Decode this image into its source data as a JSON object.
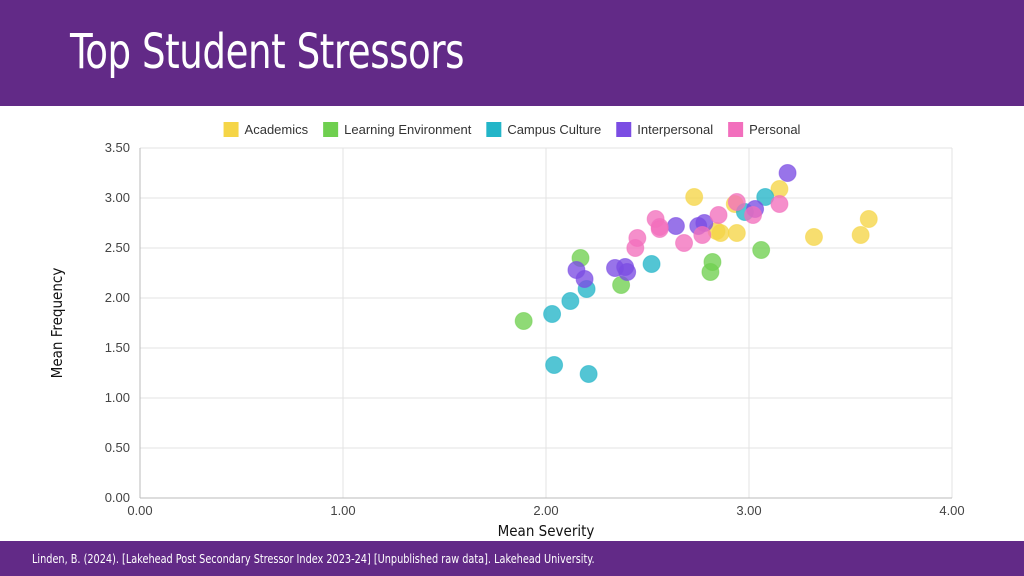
{
  "header": {
    "title": "Top Student Stressors",
    "background": "#622a87"
  },
  "footer": {
    "source": "Linden, B. (2024). [Lakehead Post Secondary Stressor Index 2023-24] [Unpublished raw data]. Lakehead University."
  },
  "chart_data": {
    "type": "scatter",
    "title": "Top Student Stressors",
    "xlabel": "Mean Severity",
    "ylabel": "Mean Frequency",
    "xlim": [
      0,
      4
    ],
    "ylim": [
      0,
      3.5
    ],
    "xticks": [
      "0.00",
      "1.00",
      "2.00",
      "3.00",
      "4.00"
    ],
    "yticks": [
      "0.00",
      "0.50",
      "1.00",
      "1.50",
      "2.00",
      "2.50",
      "3.00",
      "3.50"
    ],
    "grid": true,
    "legend_position": "top",
    "series": [
      {
        "name": "Academics",
        "color": "#f5d547",
        "points": [
          [
            2.73,
            3.01
          ],
          [
            2.93,
            2.94
          ],
          [
            3.15,
            3.09
          ],
          [
            2.84,
            2.67
          ],
          [
            2.86,
            2.65
          ],
          [
            2.94,
            2.65
          ],
          [
            3.32,
            2.61
          ],
          [
            3.55,
            2.63
          ],
          [
            3.59,
            2.79
          ]
        ]
      },
      {
        "name": "Learning Environment",
        "color": "#6fcf4f",
        "points": [
          [
            1.89,
            1.77
          ],
          [
            2.17,
            2.4
          ],
          [
            2.37,
            2.13
          ],
          [
            2.81,
            2.26
          ],
          [
            2.82,
            2.36
          ],
          [
            3.06,
            2.48
          ]
        ]
      },
      {
        "name": "Campus Culture",
        "color": "#23b5c8",
        "points": [
          [
            2.03,
            1.84
          ],
          [
            2.12,
            1.97
          ],
          [
            2.2,
            2.09
          ],
          [
            2.04,
            1.33
          ],
          [
            2.21,
            1.24
          ],
          [
            2.52,
            2.34
          ],
          [
            2.98,
            2.86
          ],
          [
            3.08,
            3.01
          ]
        ]
      },
      {
        "name": "Interpersonal",
        "color": "#7b4de3",
        "points": [
          [
            2.15,
            2.28
          ],
          [
            2.19,
            2.19
          ],
          [
            2.34,
            2.3
          ],
          [
            2.39,
            2.31
          ],
          [
            2.4,
            2.26
          ],
          [
            2.64,
            2.72
          ],
          [
            2.75,
            2.72
          ],
          [
            2.78,
            2.75
          ],
          [
            3.03,
            2.89
          ],
          [
            3.19,
            3.25
          ]
        ]
      },
      {
        "name": "Personal",
        "color": "#f26fbd",
        "points": [
          [
            2.44,
            2.5
          ],
          [
            2.45,
            2.6
          ],
          [
            2.54,
            2.79
          ],
          [
            2.56,
            2.71
          ],
          [
            2.56,
            2.69
          ],
          [
            2.68,
            2.55
          ],
          [
            2.77,
            2.63
          ],
          [
            2.85,
            2.83
          ],
          [
            2.94,
            2.96
          ],
          [
            3.02,
            2.83
          ],
          [
            3.15,
            2.94
          ]
        ]
      }
    ]
  }
}
